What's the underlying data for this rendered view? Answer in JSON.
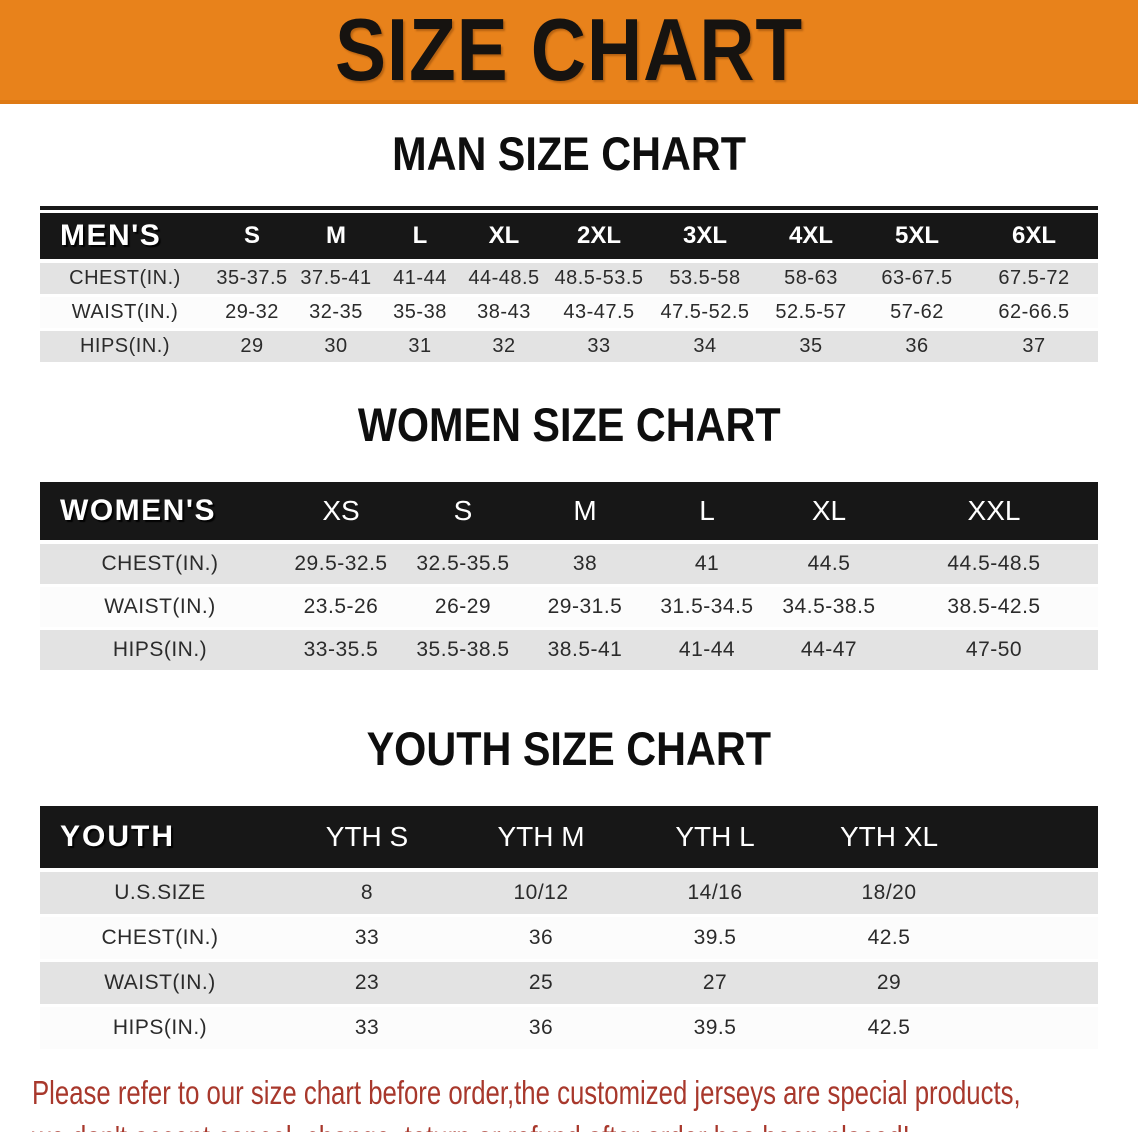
{
  "banner": {
    "title": "SIZE CHART"
  },
  "sections": [
    {
      "title": "MAN SIZE CHART",
      "header_label": "MEN'S",
      "columns": [
        "S",
        "M",
        "L",
        "XL",
        "2XL",
        "3XL",
        "4XL",
        "5XL",
        "6XL"
      ],
      "rows": [
        {
          "label": "CHEST(IN.)",
          "values": [
            "35-37.5",
            "37.5-41",
            "41-44",
            "44-48.5",
            "48.5-53.5",
            "53.5-58",
            "58-63",
            "63-67.5",
            "67.5-72"
          ]
        },
        {
          "label": "WAIST(IN.)",
          "values": [
            "29-32",
            "32-35",
            "35-38",
            "38-43",
            "43-47.5",
            "47.5-52.5",
            "52.5-57",
            "57-62",
            "62-66.5"
          ]
        },
        {
          "label": "HIPS(IN.)",
          "values": [
            "29",
            "30",
            "31",
            "32",
            "33",
            "34",
            "35",
            "36",
            "37"
          ]
        }
      ]
    },
    {
      "title": "WOMEN SIZE CHART",
      "header_label": "WOMEN'S",
      "columns": [
        "XS",
        "S",
        "M",
        "L",
        "XL",
        "XXL"
      ],
      "rows": [
        {
          "label": "CHEST(IN.)",
          "values": [
            "29.5-32.5",
            "32.5-35.5",
            "38",
            "41",
            "44.5",
            "44.5-48.5"
          ]
        },
        {
          "label": "WAIST(IN.)",
          "values": [
            "23.5-26",
            "26-29",
            "29-31.5",
            "31.5-34.5",
            "34.5-38.5",
            "38.5-42.5"
          ]
        },
        {
          "label": "HIPS(IN.)",
          "values": [
            "33-35.5",
            "35.5-38.5",
            "38.5-41",
            "41-44",
            "44-47",
            "47-50"
          ]
        }
      ]
    },
    {
      "title": "YOUTH SIZE CHART",
      "header_label": "YOUTH",
      "columns": [
        "YTH S",
        "YTH M",
        "YTH L",
        "YTH XL"
      ],
      "rows": [
        {
          "label": "U.S.SIZE",
          "values": [
            "8",
            "10/12",
            "14/16",
            "18/20"
          ]
        },
        {
          "label": "CHEST(IN.)",
          "values": [
            "33",
            "36",
            "39.5",
            "42.5"
          ]
        },
        {
          "label": "WAIST(IN.)",
          "values": [
            "23",
            "25",
            "27",
            "29"
          ]
        },
        {
          "label": "HIPS(IN.)",
          "values": [
            "33",
            "36",
            "39.5",
            "42.5"
          ]
        }
      ]
    }
  ],
  "disclaimer": {
    "line1": "Please refer to our size chart before order,the customized jerseys are special products,",
    "line2": "we don't accept cancel, change, teturn or refund after order has been placed!"
  },
  "colors": {
    "banner_bg": "#e8821b",
    "header_bar": "#171717",
    "row_alt_gray": "#e3e3e3",
    "disclaimer_red": "#a8382c"
  }
}
